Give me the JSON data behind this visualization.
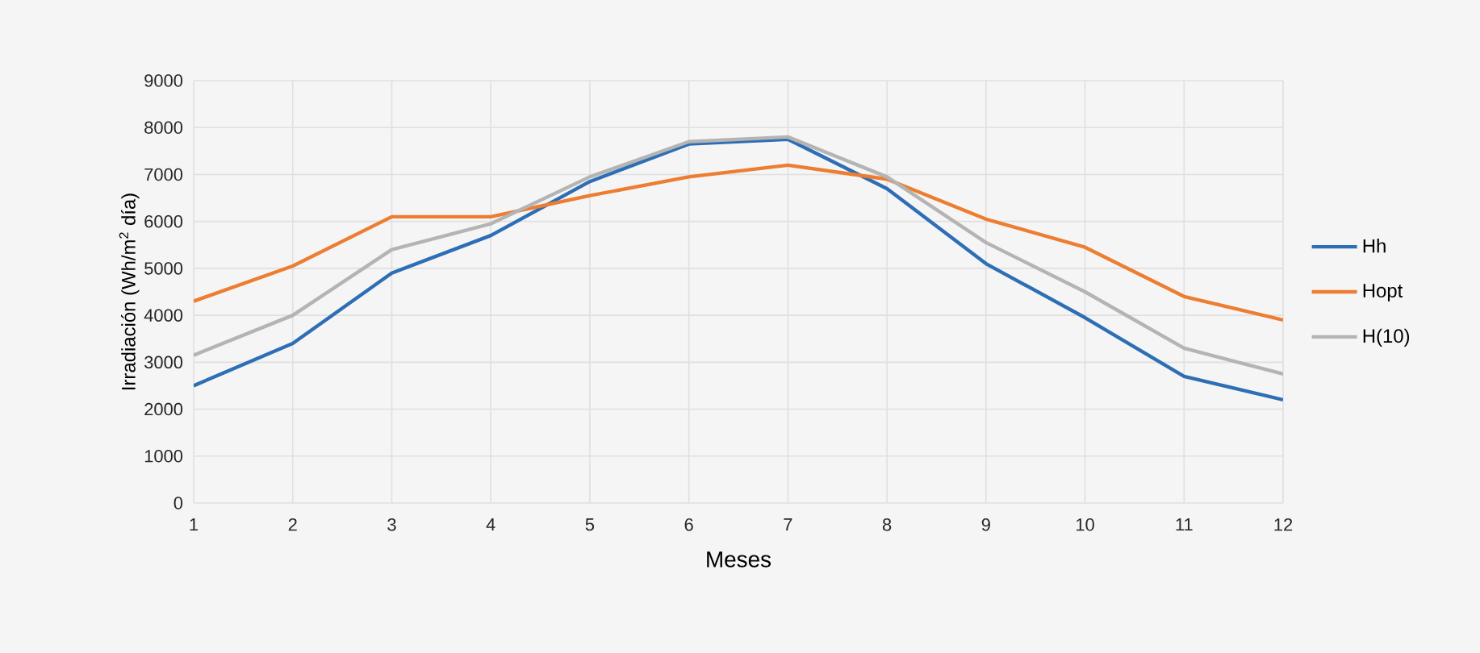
{
  "chart_data": {
    "type": "line",
    "xlabel": "Meses",
    "ylabel": "Irradiación (Wh/m$^{2}$ día)",
    "categories": [
      "1",
      "2",
      "3",
      "4",
      "5",
      "6",
      "7",
      "8",
      "9",
      "10",
      "11",
      "12"
    ],
    "series": [
      {
        "name": "Hh",
        "color": "#2e6eb5",
        "values": [
          2500,
          3400,
          4900,
          5700,
          6850,
          7650,
          7750,
          6700,
          5100,
          3950,
          2700,
          2200
        ]
      },
      {
        "name": "Hopt",
        "color": "#ed7d31",
        "values": [
          4300,
          5050,
          6100,
          6100,
          6550,
          6950,
          7200,
          6900,
          6050,
          5450,
          4400,
          3900
        ]
      },
      {
        "name": "H(10)",
        "color": "#b4b4b4",
        "values": [
          3150,
          4000,
          5400,
          5950,
          6950,
          7700,
          7800,
          6950,
          5550,
          4500,
          3300,
          2750
        ]
      }
    ],
    "ylim": [
      0,
      9000
    ],
    "yticks": [
      0,
      1000,
      2000,
      3000,
      4000,
      5000,
      6000,
      7000,
      8000,
      9000
    ],
    "grid": true,
    "legend": "right",
    "marker": "none",
    "line_style": "solid"
  }
}
